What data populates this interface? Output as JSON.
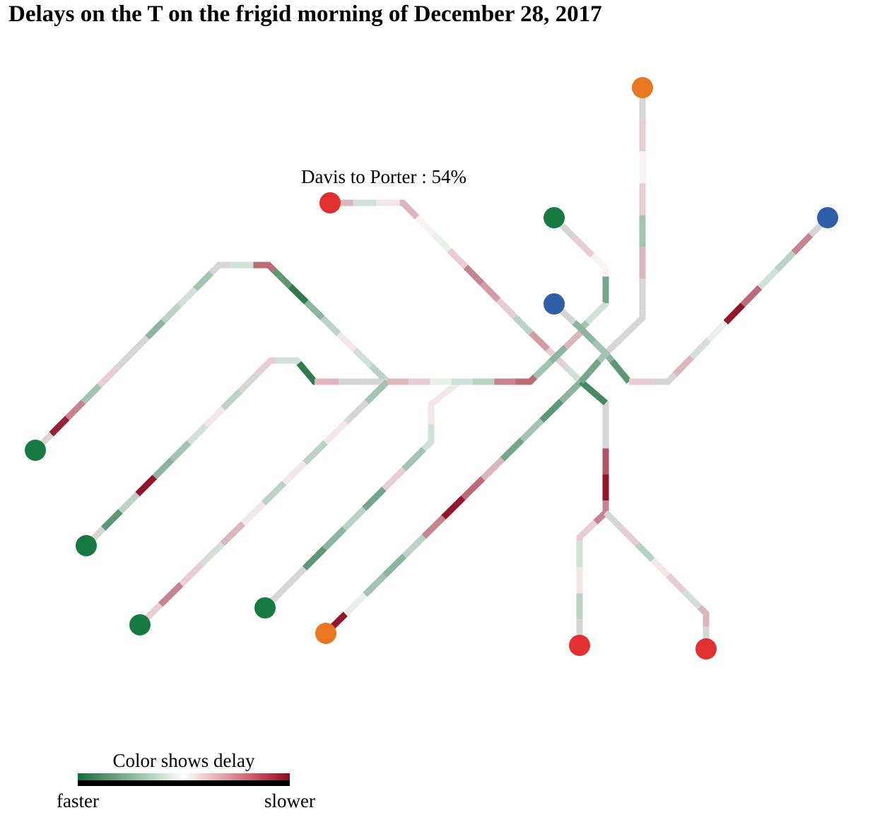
{
  "title": "Delays on the T on the frigid morning of December 28, 2017",
  "tooltip": {
    "text": "Davis to Porter : 54%"
  },
  "legend": {
    "title": "Color shows delay",
    "left_label": "faster",
    "right_label": "slower"
  },
  "colors": {
    "neutral": "#d6d6d6",
    "red_line": "#e03030",
    "green_line": "#177a40",
    "blue_line": "#2f5ea8",
    "orange_line": "#e87722",
    "scale": [
      "#1a6b3a",
      "#ffffff",
      "#8b0a1e"
    ]
  },
  "lines": [
    {
      "name": "red-line-alewife",
      "color": "red"
    },
    {
      "name": "red-line-ashmont",
      "color": "red"
    },
    {
      "name": "red-line-braintree",
      "color": "red"
    },
    {
      "name": "green-line-b",
      "color": "green"
    },
    {
      "name": "green-line-c",
      "color": "green"
    },
    {
      "name": "green-line-d",
      "color": "green"
    },
    {
      "name": "green-line-e",
      "color": "green"
    },
    {
      "name": "green-line-lechmere",
      "color": "green"
    },
    {
      "name": "orange-line-oak-grove",
      "color": "orange"
    },
    {
      "name": "orange-line-forest-hills",
      "color": "orange"
    },
    {
      "name": "blue-line-wonderland",
      "color": "blue"
    },
    {
      "name": "blue-line-bowdoin",
      "color": "blue"
    }
  ]
}
